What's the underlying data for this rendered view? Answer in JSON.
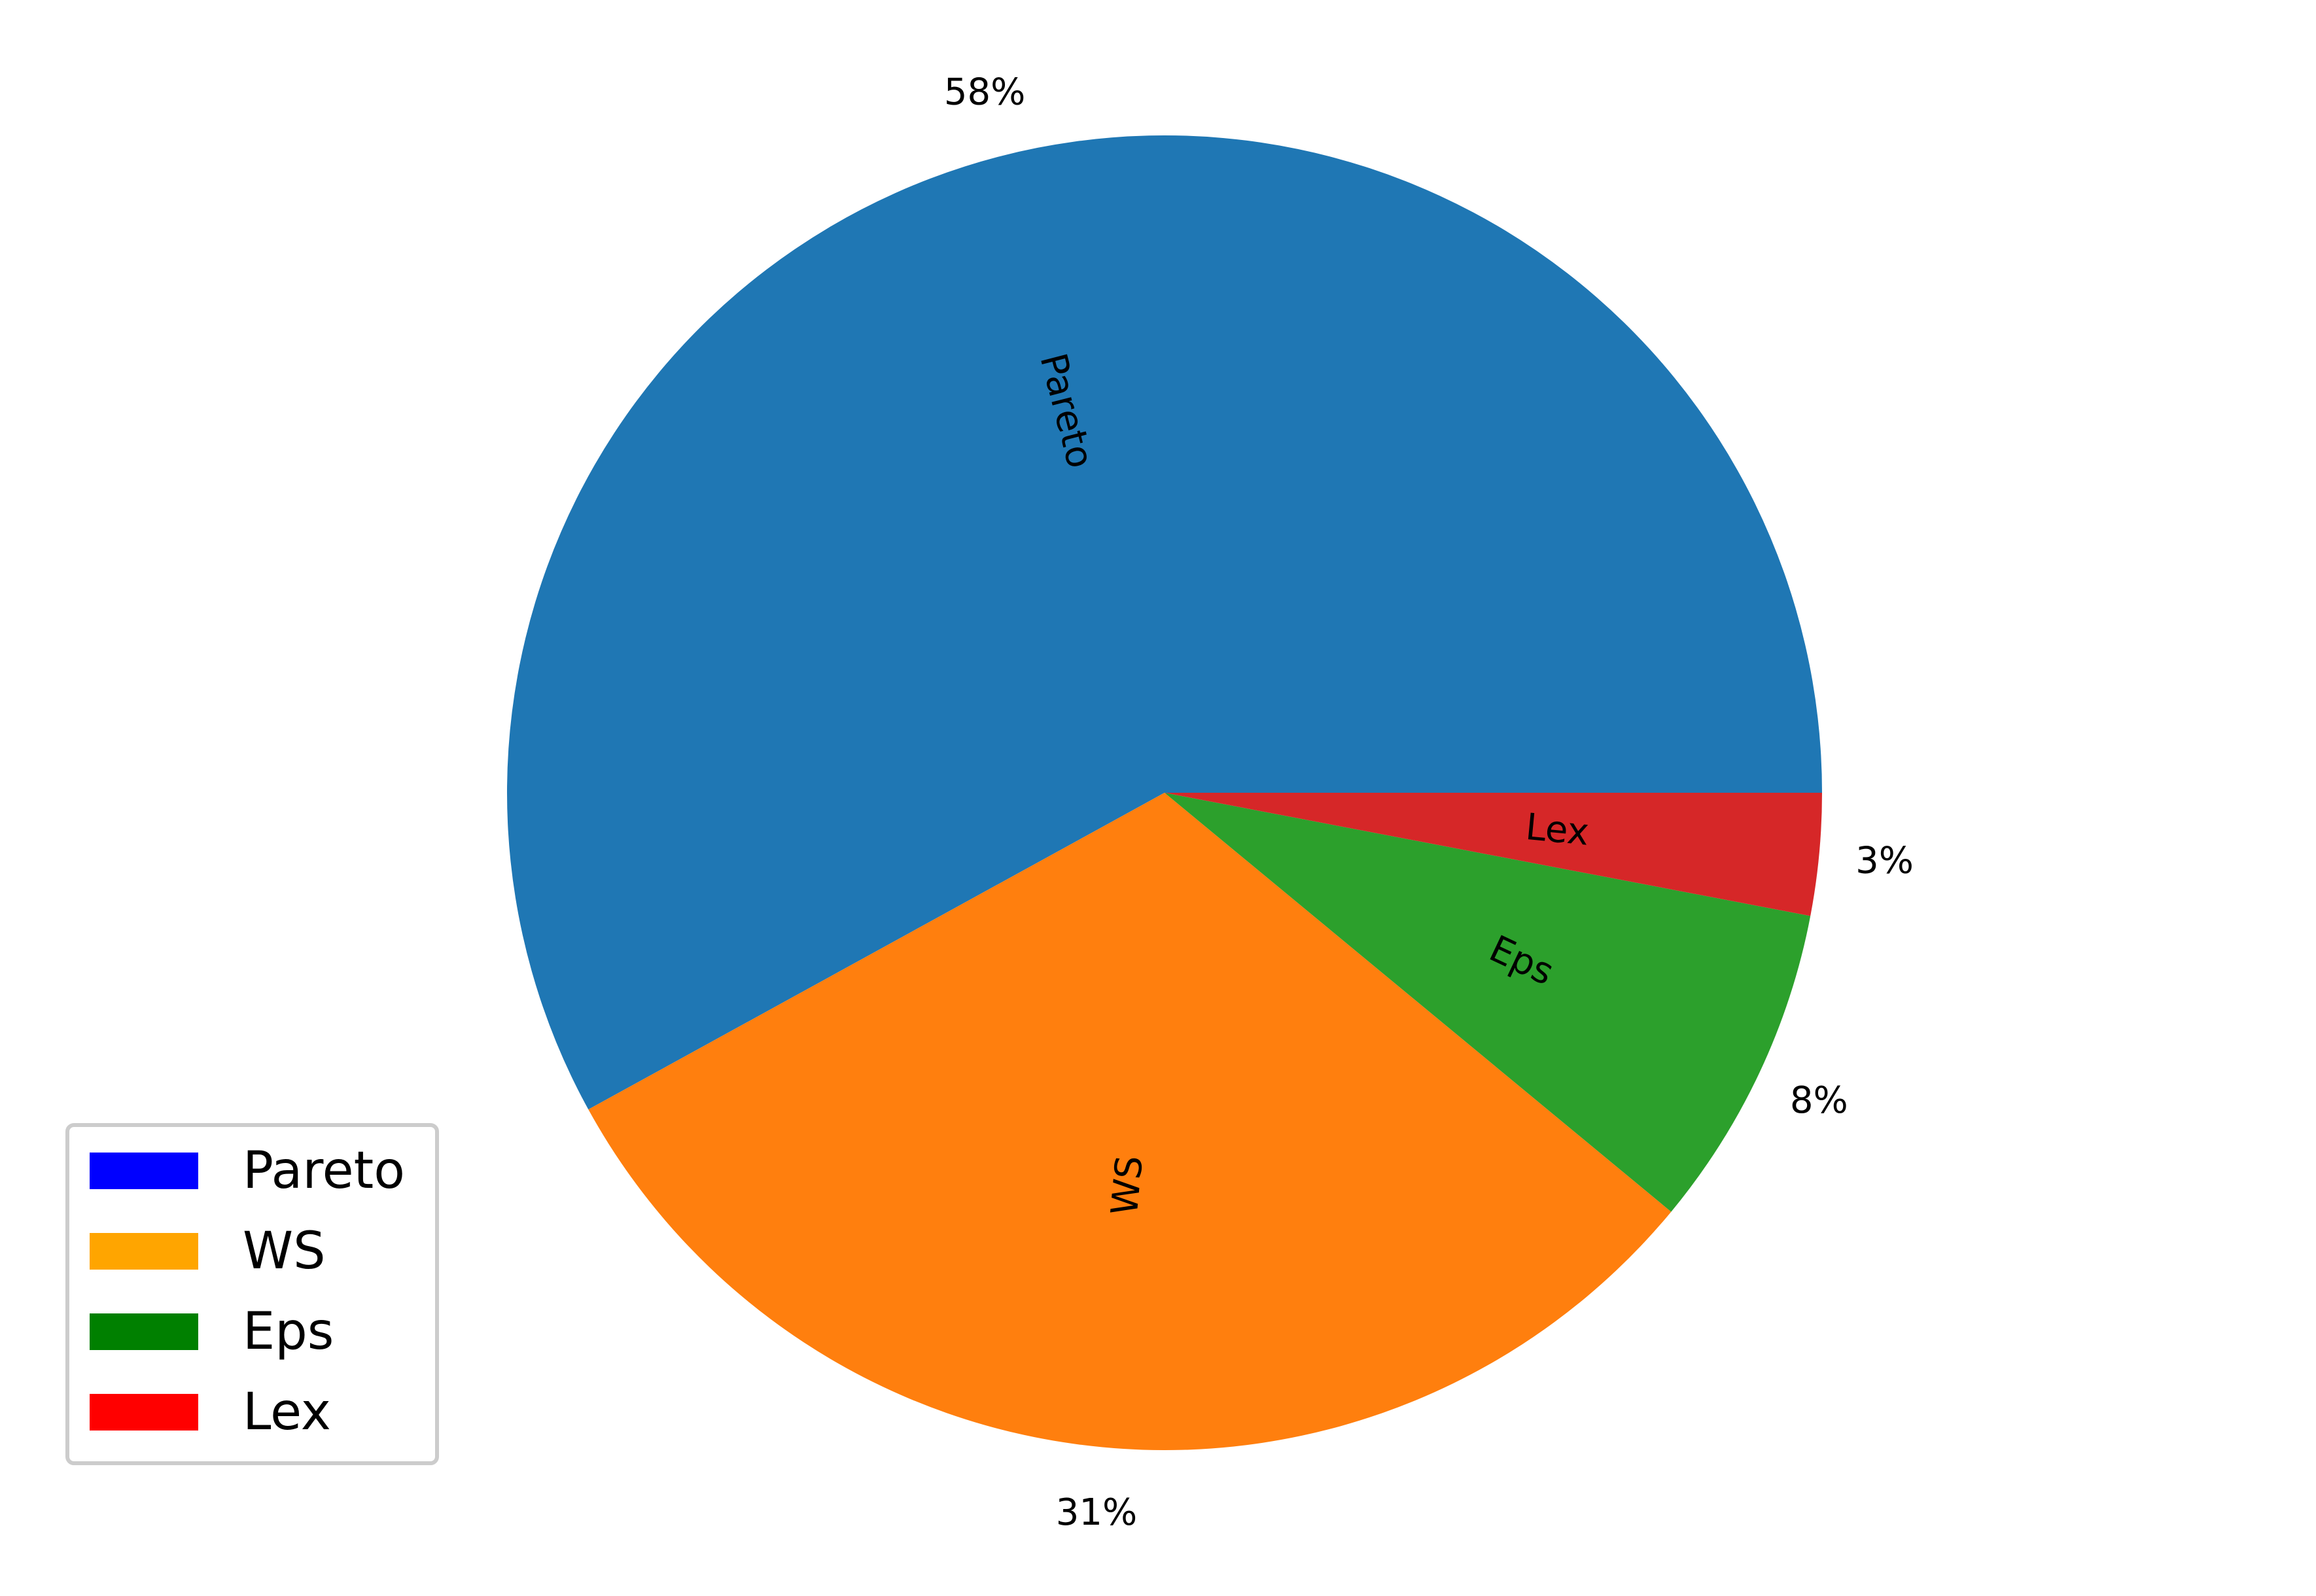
{
  "chart_data": {
    "type": "pie",
    "title": "",
    "slices": [
      {
        "label": "Pareto",
        "value": 58,
        "pct_label": "58%",
        "color": "#1f77b4"
      },
      {
        "label": "WS",
        "value": 31,
        "pct_label": "31%",
        "color": "#ff7f0e"
      },
      {
        "label": "Eps",
        "value": 8,
        "pct_label": "8%",
        "color": "#2ca02c"
      },
      {
        "label": "Lex",
        "value": 3,
        "pct_label": "3%",
        "color": "#d62728"
      }
    ],
    "start_angle_deg": 0,
    "direction": "counterclockwise",
    "legend": {
      "placement": "lower-left",
      "entries": [
        {
          "label": "Pareto",
          "color": "#0000ff"
        },
        {
          "label": "WS",
          "color": "#ffa500"
        },
        {
          "label": "Eps",
          "color": "#008000"
        },
        {
          "label": "Lex",
          "color": "#ff0000"
        }
      ]
    }
  }
}
